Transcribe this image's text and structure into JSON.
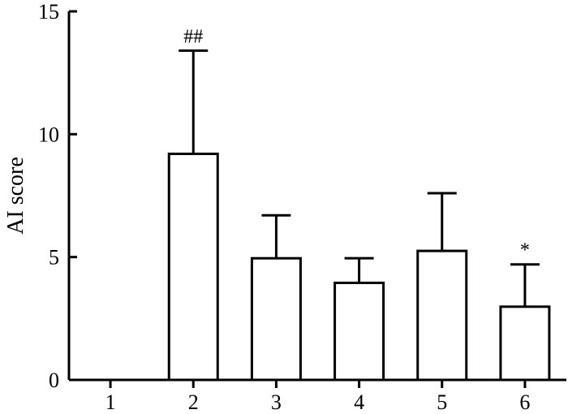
{
  "chart_data": {
    "type": "bar",
    "title": "",
    "xlabel": "",
    "ylabel": "AI score",
    "categories": [
      "1",
      "2",
      "3",
      "4",
      "5",
      "6"
    ],
    "values": [
      0,
      9.2,
      4.95,
      3.95,
      5.25,
      2.98
    ],
    "error_upper": [
      0,
      13.4,
      6.7,
      4.95,
      7.6,
      4.7
    ],
    "annotations": [
      "",
      "##",
      "",
      "",
      "",
      "*"
    ],
    "ylim": [
      0,
      15
    ],
    "yticks": [
      0,
      5,
      10,
      15
    ],
    "grid": false,
    "legend": "none",
    "bar_fill": "#ffffff",
    "stroke_color": "#000000"
  }
}
